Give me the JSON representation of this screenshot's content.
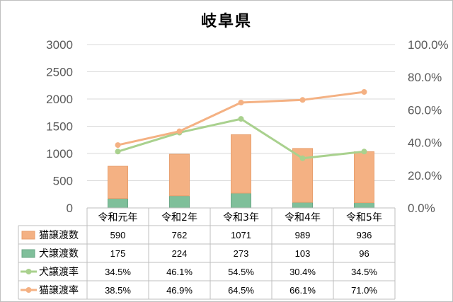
{
  "chart_data": {
    "type": "bar",
    "title": "岐阜県",
    "categories": [
      "令和元年",
      "令和2年",
      "令和3年",
      "令和4年",
      "令和5年"
    ],
    "ylim": [
      0,
      3000
    ],
    "yticks": [
      "0",
      "500",
      "1000",
      "1500",
      "2000",
      "2500",
      "3000"
    ],
    "y2lim": [
      0,
      100
    ],
    "y2ticks": [
      "0.0%",
      "20.0%",
      "40.0%",
      "60.0%",
      "80.0%",
      "100.0%"
    ],
    "grid": true,
    "stacked": true,
    "series": [
      {
        "name": "猫譲渡数",
        "kind": "bar",
        "axis": "left",
        "color": "#f4b183",
        "values": [
          590,
          762,
          1071,
          989,
          936
        ],
        "labels": [
          "590",
          "762",
          "1071",
          "989",
          "936"
        ]
      },
      {
        "name": "犬譲渡数",
        "kind": "bar",
        "axis": "left",
        "color": "#7fbf9a",
        "values": [
          175,
          224,
          273,
          103,
          96
        ],
        "labels": [
          "175",
          "224",
          "273",
          "103",
          "96"
        ]
      },
      {
        "name": "犬譲渡率",
        "kind": "line",
        "axis": "right",
        "color": "#a9d18e",
        "values": [
          34.5,
          46.1,
          54.5,
          30.4,
          34.5
        ],
        "labels": [
          "34.5%",
          "46.1%",
          "54.5%",
          "30.4%",
          "34.5%"
        ]
      },
      {
        "name": "猫譲渡率",
        "kind": "line",
        "axis": "right",
        "color": "#f4b183",
        "values": [
          38.5,
          46.9,
          64.5,
          66.1,
          71.0
        ],
        "labels": [
          "38.5%",
          "46.9%",
          "64.5%",
          "66.1%",
          "71.0%"
        ]
      }
    ]
  }
}
